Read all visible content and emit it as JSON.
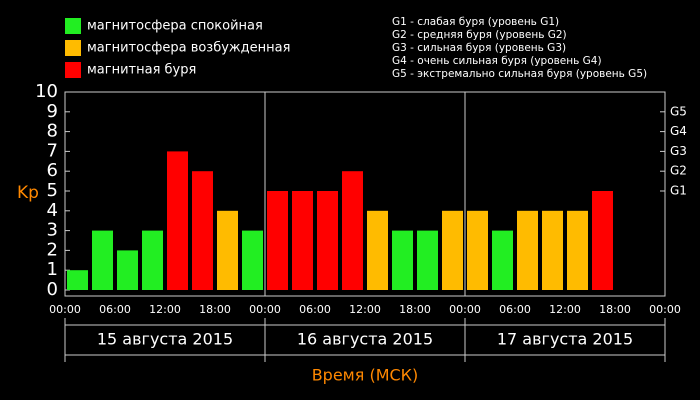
{
  "chart_data": {
    "type": "bar",
    "y_label": "Kp",
    "x_label": "Время (МСК)",
    "x": [
      0,
      3,
      6,
      9,
      12,
      15,
      18,
      21,
      24,
      27,
      30,
      33,
      36,
      39,
      42,
      45,
      48,
      51,
      54,
      57,
      60,
      63,
      66,
      69
    ],
    "xlim": [
      0,
      72
    ],
    "xticks": [
      {
        "value": 0,
        "label": "00:00"
      },
      {
        "value": 6,
        "label": "06:00"
      },
      {
        "value": 12,
        "label": "12:00"
      },
      {
        "value": 18,
        "label": "18:00"
      },
      {
        "value": 24,
        "label": "00:00"
      },
      {
        "value": 30,
        "label": "06:00"
      },
      {
        "value": 36,
        "label": "12:00"
      },
      {
        "value": 42,
        "label": "18:00"
      },
      {
        "value": 48,
        "label": "00:00"
      },
      {
        "value": 54,
        "label": "06:00"
      },
      {
        "value": 60,
        "label": "12:00"
      },
      {
        "value": 66,
        "label": "18:00"
      },
      {
        "value": 72,
        "label": "00:00"
      }
    ],
    "days": [
      "15 августа 2015",
      "16 августа 2015",
      "17 августа 2015"
    ],
    "ylim": [
      0,
      10
    ],
    "yticks": [
      0,
      1,
      2,
      3,
      4,
      5,
      6,
      7,
      8,
      9,
      10
    ],
    "y2lim": [
      0,
      10
    ],
    "y2ticks": [
      {
        "value": 5,
        "label": "G1"
      },
      {
        "value": 6,
        "label": "G2"
      },
      {
        "value": 7,
        "label": "G3"
      },
      {
        "value": 8,
        "label": "G4"
      },
      {
        "value": 9,
        "label": "G5"
      }
    ],
    "storm_levels": [
      "G1 - слабая буря (уровень G1)",
      "G2 - средняя буря (уровень G2)",
      "G3 - сильная буря (уровень G3)",
      "G4 - очень сильная буря (уровень G4)",
      "G5 - экстремально сильная буря (уровень G5)"
    ],
    "series": [
      {
        "name": "магнитосфера спокойная",
        "color": "#22ee22",
        "values": [
          1,
          3,
          2,
          3,
          null,
          null,
          null,
          3,
          null,
          null,
          null,
          null,
          null,
          3,
          3,
          null,
          null,
          3,
          null,
          null,
          null,
          null,
          null,
          null
        ]
      },
      {
        "name": "магнитосфера возбужденная",
        "color": "#ffbb00",
        "values": [
          null,
          null,
          null,
          null,
          null,
          null,
          4,
          null,
          null,
          null,
          null,
          null,
          4,
          null,
          null,
          4,
          4,
          null,
          4,
          4,
          4,
          null,
          null,
          null
        ]
      },
      {
        "name": "магнитная буря",
        "color": "#ff0000",
        "values": [
          null,
          null,
          null,
          null,
          7,
          6,
          null,
          null,
          5,
          5,
          5,
          6,
          null,
          null,
          null,
          null,
          null,
          null,
          null,
          null,
          null,
          5,
          null,
          null
        ]
      }
    ]
  }
}
